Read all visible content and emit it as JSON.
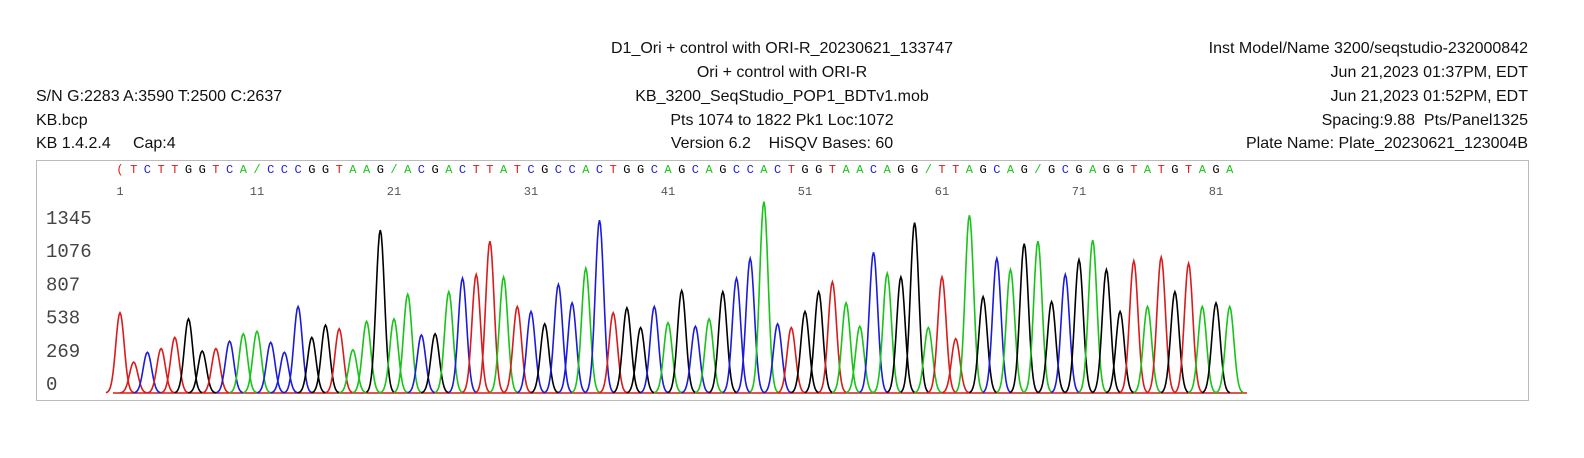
{
  "header": {
    "left": [
      "S/N G:2283 A:3590 T:2500 C:2637",
      "KB.bcp",
      "KB 1.4.2.4     Cap:4"
    ],
    "center": [
      "D1_Ori + control with ORI-R_20230621_133747",
      "Ori + control with ORI-R",
      "KB_3200_SeqStudio_POP1_BDTv1.mob",
      "Pts 1074 to 1822 Pk1 Loc:1072",
      "Version 6.2    HiSQV Bases: 60"
    ],
    "right": [
      "Inst Model/Name 3200/seqstudio-232000842",
      "Jun 21,2023 01:37PM, EDT",
      "Jun 21,2023 01:52PM, EDT",
      "Spacing:9.88  Pts/Panel1325",
      "Plate Name: Plate_20230621_123004B"
    ]
  },
  "chart_data": {
    "type": "chromatogram",
    "sequence": [
      "(",
      "T",
      "C",
      "T",
      "T",
      "G",
      "G",
      "T",
      "C",
      "A",
      "/",
      "C",
      "C",
      "C",
      "G",
      "G",
      "T",
      "A",
      "A",
      "G",
      "/",
      "A",
      "C",
      "G",
      "A",
      "C",
      "T",
      "T",
      "A",
      "T",
      "C",
      "G",
      "C",
      "C",
      "A",
      "C",
      "T",
      "G",
      "G",
      "C",
      "A",
      "G",
      "C",
      "A",
      "G",
      "C",
      "C",
      "A",
      "C",
      "T",
      "G",
      "G",
      "T",
      "A",
      "A",
      "C",
      "A",
      "G",
      "G",
      "/",
      "T",
      "T",
      "A",
      "G",
      "C",
      "A",
      "G",
      "/",
      "G",
      "C",
      "G",
      "A",
      "G",
      "G",
      "T",
      "A",
      "T",
      "G",
      "T",
      "A",
      "G",
      "A"
    ],
    "values": [
      650,
      250,
      330,
      360,
      450,
      600,
      340,
      360,
      420,
      480,
      500,
      410,
      330,
      700,
      450,
      550,
      520,
      350,
      580,
      1320,
      600,
      800,
      470,
      480,
      820,
      930,
      960,
      1230,
      940,
      700,
      660,
      560,
      880,
      730,
      1010,
      1400,
      650,
      690,
      530,
      700,
      570,
      830,
      540,
      600,
      820,
      930,
      1090,
      1550,
      560,
      530,
      660,
      820,
      900,
      730,
      540,
      1140,
      970,
      940,
      1380,
      530,
      940,
      440,
      1440,
      780,
      1090,
      1000,
      1210,
      1230,
      740,
      960,
      1080,
      1240,
      1000,
      660,
      1070,
      700,
      1100,
      820,
      1050,
      700,
      730,
      700
    ],
    "base_colors": {
      "A": "#18c418",
      "C": "#1c1cd8",
      "G": "#000000",
      "T": "#d81c1c",
      "(": "#d81c1c",
      "/": "#18c418"
    },
    "position_labels": [
      1,
      11,
      21,
      31,
      41,
      51,
      61,
      71,
      81
    ],
    "ylim": [
      0,
      1600
    ],
    "yticks": [
      0,
      269,
      538,
      807,
      1076,
      1345
    ]
  }
}
